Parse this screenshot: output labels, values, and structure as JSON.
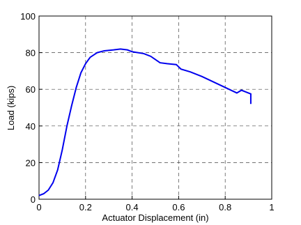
{
  "chart_data": {
    "type": "line",
    "xlabel": "Actuator Displacement (in)",
    "ylabel": "Load (kips)",
    "x": [
      0,
      0.02,
      0.04,
      0.06,
      0.08,
      0.1,
      0.12,
      0.14,
      0.16,
      0.18,
      0.2,
      0.22,
      0.25,
      0.28,
      0.32,
      0.35,
      0.38,
      0.4,
      0.45,
      0.48,
      0.52,
      0.55,
      0.59,
      0.61,
      0.65,
      0.7,
      0.75,
      0.8,
      0.85,
      0.87,
      0.89,
      0.91,
      0.91
    ],
    "series": [
      {
        "color": "#0000ee",
        "values": [
          2,
          3,
          5,
          9,
          16,
          27,
          40,
          51,
          61,
          69,
          74,
          77.5,
          80,
          81,
          81.5,
          82,
          81.5,
          80.5,
          79.5,
          78,
          74.5,
          74,
          73.5,
          71,
          69.5,
          67,
          64,
          61,
          58,
          59.5,
          58.5,
          57.5,
          52
        ]
      }
    ],
    "xlim": [
      0,
      1
    ],
    "xticks": [
      0,
      0.2,
      0.4,
      0.6,
      0.8,
      1
    ],
    "ylim": [
      0,
      100
    ],
    "yticks": [
      0,
      20,
      40,
      60,
      80,
      100
    ],
    "grid": true
  }
}
